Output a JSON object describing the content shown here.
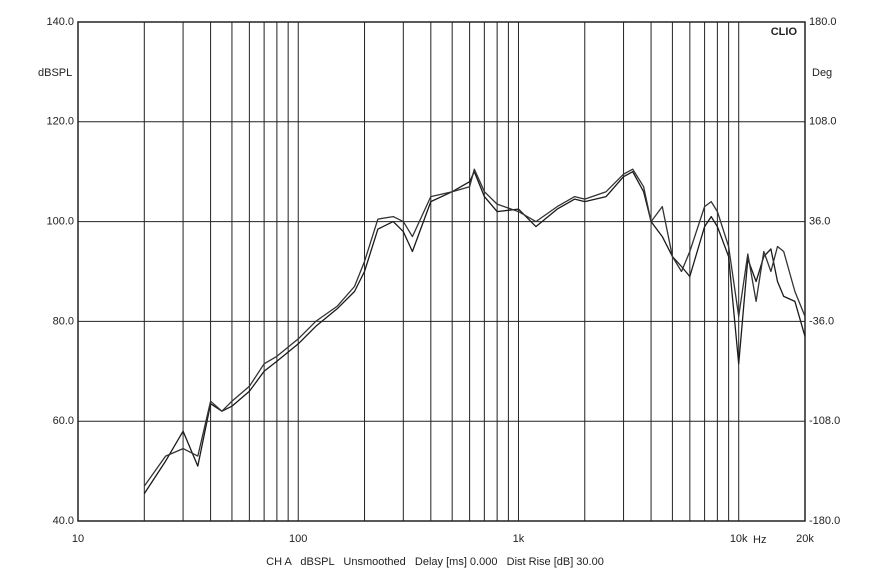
{
  "chart_data": {
    "type": "line",
    "x_log": true,
    "grid": true,
    "brand": "CLIO",
    "y_label": "dBSPL",
    "y2_label": "Deg",
    "x_label": "Hz",
    "footer": "CH A   dBSPL   Unsmoothed   Delay [ms] 0.000   Dist Rise [dB] 30.00",
    "xlim": [
      10,
      20000
    ],
    "xticks": [
      10,
      100,
      {
        "value": 1000,
        "label": "1k"
      },
      {
        "value": 10000,
        "label": "10k"
      },
      {
        "value": 20000,
        "label": "20k"
      }
    ],
    "xgrid": [
      20,
      30,
      40,
      50,
      60,
      70,
      80,
      90,
      100,
      200,
      300,
      400,
      500,
      600,
      700,
      800,
      900,
      1000,
      2000,
      3000,
      4000,
      5000,
      6000,
      7000,
      8000,
      9000,
      10000,
      20000
    ],
    "ylim": [
      40,
      140
    ],
    "yticks": [
      {
        "value": 40,
        "label": "40.0"
      },
      {
        "value": 60,
        "label": "60.0"
      },
      {
        "value": 80,
        "label": "80.0"
      },
      {
        "value": 100,
        "label": "100.0"
      },
      {
        "value": 120,
        "label": "120.0"
      },
      {
        "value": 140,
        "label": "140.0"
      }
    ],
    "y2lim": [
      -180,
      180
    ],
    "y2ticks": [
      {
        "value": -180,
        "label": "-180.0"
      },
      {
        "value": -108,
        "label": "-108.0"
      },
      {
        "value": -36,
        "label": "-36.0"
      },
      {
        "value": 36,
        "label": "36.0"
      },
      {
        "value": 108,
        "label": "108.0"
      },
      {
        "value": 180,
        "label": "180.0"
      }
    ],
    "x": [
      20,
      25,
      30,
      35,
      40,
      45,
      50,
      60,
      70,
      80,
      100,
      120,
      150,
      180,
      200,
      230,
      270,
      300,
      330,
      400,
      500,
      600,
      630,
      700,
      800,
      1000,
      1200,
      1500,
      1800,
      2000,
      2500,
      3000,
      3300,
      3700,
      4000,
      4500,
      5000,
      5500,
      6000,
      7000,
      7500,
      8000,
      9000,
      10000,
      11000,
      12000,
      13000,
      14000,
      15000,
      16000,
      18000,
      20000
    ],
    "series": [
      {
        "color": "#1a1a1a",
        "values": [
          45.5,
          52,
          58,
          51,
          63.5,
          62,
          63,
          66,
          70,
          72,
          75.5,
          79,
          82.5,
          86,
          90,
          98.5,
          100,
          98,
          94,
          104,
          106,
          108,
          110,
          105,
          102,
          102.5,
          99,
          102.5,
          104.5,
          104,
          105,
          109,
          110,
          106,
          100,
          97,
          93,
          91,
          89,
          99,
          101,
          99,
          93,
          71.5,
          92.5,
          88,
          93,
          94.5,
          88,
          85,
          84,
          77
        ]
      },
      {
        "color": "#333333",
        "values": [
          47,
          53,
          54.5,
          53,
          64,
          62,
          64,
          67,
          71.5,
          73,
          76.5,
          80,
          83,
          87,
          92,
          100.5,
          101,
          100,
          97,
          105,
          106,
          107,
          110.5,
          106,
          103.5,
          102,
          100,
          103,
          105,
          104.5,
          106,
          109.5,
          110.5,
          107,
          100,
          103,
          93,
          90,
          94,
          103,
          104,
          102,
          95,
          81,
          93.5,
          84,
          94,
          90,
          95,
          94,
          86,
          81
        ]
      }
    ]
  }
}
